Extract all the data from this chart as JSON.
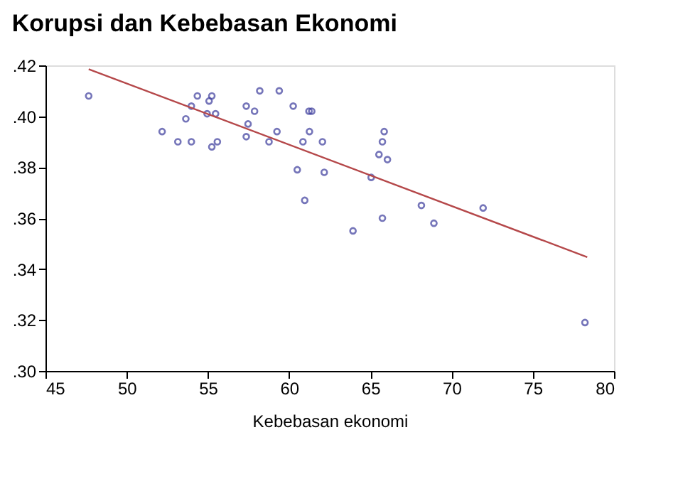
{
  "chart_data": {
    "type": "scatter",
    "title": "Korupsi dan Kebebasan Ekonomi",
    "xlabel": "Kebebasan ekonomi",
    "xlim": [
      45,
      80
    ],
    "xticks": [
      45,
      50,
      55,
      60,
      65,
      70,
      75,
      80
    ],
    "ylim": [
      0.3,
      0.42
    ],
    "yticks": [
      {
        "value": 0.3,
        "label": ".30"
      },
      {
        "value": 0.32,
        "label": ".32"
      },
      {
        "value": 0.34,
        "label": ".34"
      },
      {
        "value": 0.36,
        "label": ".36"
      },
      {
        "value": 0.38,
        "label": ".38"
      },
      {
        "value": 0.4,
        "label": ".40"
      },
      {
        "value": 0.42,
        "label": ".42"
      }
    ],
    "grid": false,
    "series": [
      {
        "color": "#3b3b9c",
        "marker": "circle",
        "x": [
          47.66,
          52.18,
          53.15,
          53.98,
          53.64,
          53.98,
          54.35,
          54.95,
          55.07,
          55.24,
          55.47,
          55.24,
          55.58,
          57.36,
          57.47,
          57.36,
          57.87,
          58.19,
          58.76,
          59.25,
          59.39,
          60.25,
          60.5,
          60.85,
          60.96,
          61.22,
          61.39,
          61.25,
          62.05,
          62.16,
          63.93,
          65.05,
          65.53,
          65.74,
          65.85,
          66.05,
          65.74,
          68.14,
          68.91,
          71.94,
          78.21
        ],
        "values": [
          0.408,
          0.394,
          0.39,
          0.39,
          0.399,
          0.404,
          0.408,
          0.401,
          0.406,
          0.408,
          0.401,
          0.388,
          0.39,
          0.404,
          0.397,
          0.392,
          0.402,
          0.41,
          0.39,
          0.394,
          0.41,
          0.404,
          0.379,
          0.39,
          0.367,
          0.402,
          0.402,
          0.394,
          0.39,
          0.378,
          0.355,
          0.376,
          0.385,
          0.39,
          0.394,
          0.383,
          0.36,
          0.365,
          0.358,
          0.364,
          0.319
        ]
      },
      {
        "type": "line",
        "color": "#b5484a",
        "line_style": "solid",
        "marker": "none",
        "x": [
          47.66,
          78.35
        ],
        "values": [
          0.4185,
          0.3447
        ]
      }
    ]
  }
}
